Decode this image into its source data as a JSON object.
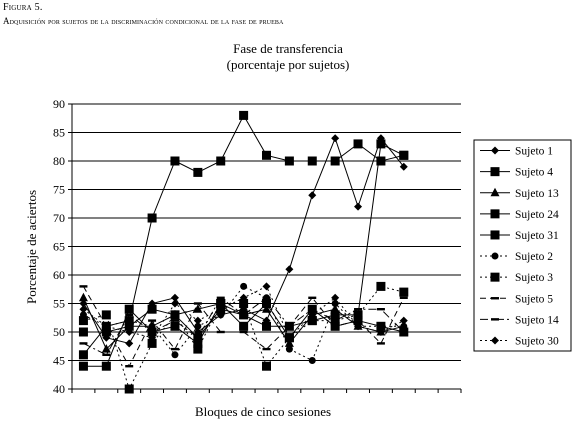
{
  "figure_label": "Figura 5.",
  "figure_caption": "Adquisición por sujetos de la discriminación condicional de la fase de prueba",
  "chart_data": {
    "type": "line",
    "title": "Fase de transferencia",
    "subtitle": "(porcentaje por sujetos)",
    "xlabel": "Bloques de cinco sesiones",
    "ylabel": "Porcentaje de aciertos",
    "ylim": [
      40,
      90
    ],
    "yticks": [
      40,
      45,
      50,
      55,
      60,
      65,
      70,
      75,
      80,
      85,
      90
    ],
    "grid": "horizontal",
    "legend_position": "right",
    "x": [
      1,
      2,
      3,
      4,
      5,
      6,
      7,
      8,
      9,
      10,
      11,
      12,
      13,
      14,
      15,
      16,
      17
    ],
    "series": [
      {
        "name": "Sujeto 1",
        "style": "solid",
        "marker": "diamond",
        "values": [
          55,
          49,
          48,
          55,
          56,
          50,
          53,
          54,
          52,
          61,
          74,
          84,
          72,
          84,
          79,
          null,
          null
        ]
      },
      {
        "name": "Sujeto 4",
        "style": "solid",
        "marker": "square",
        "values": [
          44,
          44,
          54,
          50,
          51,
          48,
          55,
          51,
          55,
          49,
          54,
          51,
          52,
          51,
          50,
          null,
          null
        ]
      },
      {
        "name": "Sujeto 13",
        "style": "solid",
        "marker": "triangle",
        "values": [
          56,
          47,
          51,
          51,
          53,
          54,
          55,
          53,
          54,
          48,
          53,
          54,
          51,
          50,
          51,
          null,
          null
        ]
      },
      {
        "name": "Sujeto 24",
        "style": "solid",
        "marker": "square",
        "values": [
          50,
          50,
          51,
          54,
          53,
          49,
          54,
          53,
          51,
          51,
          52,
          53,
          53,
          83,
          81,
          null,
          null
        ]
      },
      {
        "name": "Sujeto 31",
        "style": "solid",
        "marker": "square",
        "values": [
          46,
          51,
          52,
          70,
          80,
          78,
          80,
          88,
          81,
          80,
          80,
          80,
          83,
          80,
          81,
          null,
          null
        ]
      },
      {
        "name": "Sujeto 2",
        "style": "dotted",
        "marker": "circle",
        "values": [
          53,
          51,
          52,
          51,
          46,
          51,
          53,
          58,
          56,
          47,
          45,
          55,
          51,
          51,
          51,
          null,
          null
        ]
      },
      {
        "name": "Sujeto 3",
        "style": "dotted",
        "marker": "square",
        "values": [
          52,
          53,
          40,
          48,
          53,
          47,
          55,
          55,
          44,
          49,
          52,
          52,
          53,
          58,
          57,
          null,
          null
        ]
      },
      {
        "name": "Sujeto 5",
        "style": "dashed",
        "marker": "dash",
        "values": [
          58,
          51,
          44,
          52,
          47,
          55,
          50,
          50,
          47,
          51,
          56,
          51,
          52,
          48,
          56,
          null,
          null
        ]
      },
      {
        "name": "Sujeto 14",
        "style": "dash-dot",
        "marker": "dash",
        "values": [
          48,
          46,
          53,
          50,
          52,
          49,
          56,
          53,
          56,
          51,
          54,
          52,
          54,
          54,
          50,
          null,
          null
        ]
      },
      {
        "name": "Sujeto 30",
        "style": "dotted",
        "marker": "diamond",
        "values": [
          54,
          51,
          50,
          49,
          55,
          52,
          54,
          56,
          58,
          49,
          53,
          56,
          51,
          50,
          52,
          null,
          null
        ]
      }
    ]
  }
}
